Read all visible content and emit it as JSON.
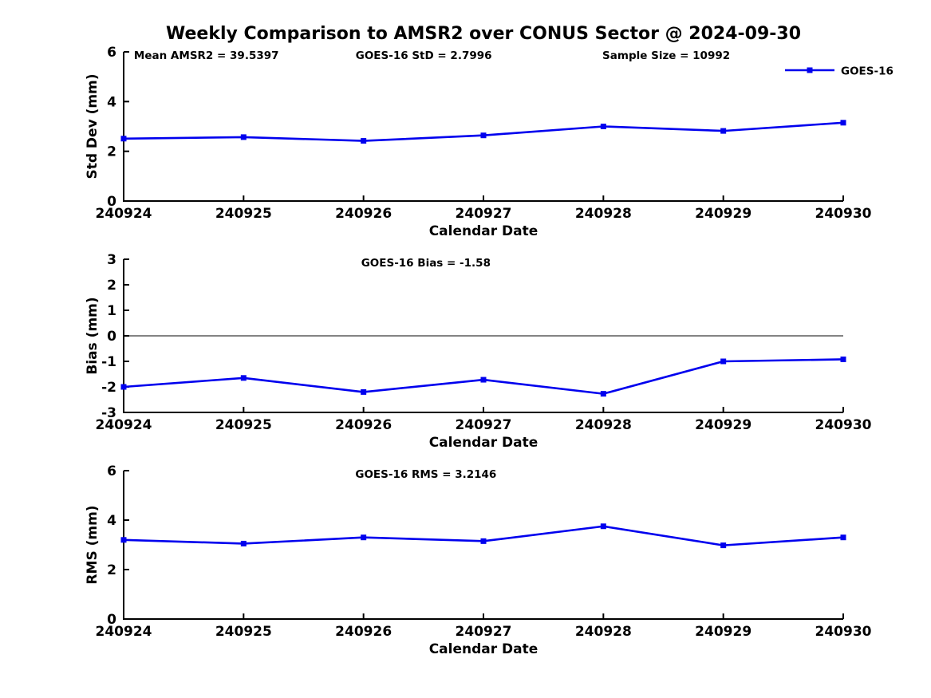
{
  "title": "Weekly Comparison to AMSR2 over CONUS Sector @ 2024-09-30",
  "colors": {
    "series_line": "#0000EE",
    "zero_line": "#5a5a5a",
    "axis": "#000000",
    "text": "#000000"
  },
  "legend": {
    "label": "GOES-16"
  },
  "chart_data": [
    {
      "type": "line",
      "x": [
        "240924",
        "240925",
        "240926",
        "240927",
        "240928",
        "240929",
        "240930"
      ],
      "xlabel": "Calendar Date",
      "ylabel": "Std Dev (mm)",
      "ylim": [
        0,
        6
      ],
      "yticks": [
        0,
        2,
        4,
        6
      ],
      "grid": false,
      "legend_position": "top-right",
      "zero_line": false,
      "series": [
        {
          "name": "GOES-16",
          "marker": "square",
          "values": [
            2.51,
            2.57,
            2.42,
            2.64,
            3.0,
            2.82,
            3.15
          ]
        }
      ],
      "annotations": [
        {
          "text": "Mean AMSR2 = 39.5397",
          "fx": 0.115
        },
        {
          "text": "GOES-16 StD = 2.7996",
          "fx": 0.417
        },
        {
          "text": "Sample Size = 10992",
          "fx": 0.754
        }
      ]
    },
    {
      "type": "line",
      "x": [
        "240924",
        "240925",
        "240926",
        "240927",
        "240928",
        "240929",
        "240930"
      ],
      "xlabel": "Calendar Date",
      "ylabel": "Bias (mm)",
      "ylim": [
        -3,
        3
      ],
      "yticks": [
        -3,
        -2,
        -1,
        0,
        1,
        2,
        3
      ],
      "grid": false,
      "legend_position": "none",
      "zero_line": true,
      "series": [
        {
          "name": "GOES-16",
          "marker": "square",
          "values": [
            -2.0,
            -1.65,
            -2.2,
            -1.72,
            -2.27,
            -1.0,
            -0.92
          ]
        }
      ],
      "annotations": [
        {
          "text": "GOES-16 Bias  = -1.58",
          "fx": 0.42
        }
      ]
    },
    {
      "type": "line",
      "x": [
        "240924",
        "240925",
        "240926",
        "240927",
        "240928",
        "240929",
        "240930"
      ],
      "xlabel": "Calendar Date",
      "ylabel": "RMS (mm)",
      "ylim": [
        0,
        6
      ],
      "yticks": [
        0,
        2,
        4,
        6
      ],
      "grid": false,
      "legend_position": "none",
      "zero_line": false,
      "series": [
        {
          "name": "GOES-16",
          "marker": "square",
          "values": [
            3.2,
            3.05,
            3.3,
            3.15,
            3.75,
            2.98,
            3.3
          ]
        }
      ],
      "annotations": [
        {
          "text": "GOES-16 RMS = 3.2146",
          "fx": 0.42
        }
      ]
    }
  ]
}
